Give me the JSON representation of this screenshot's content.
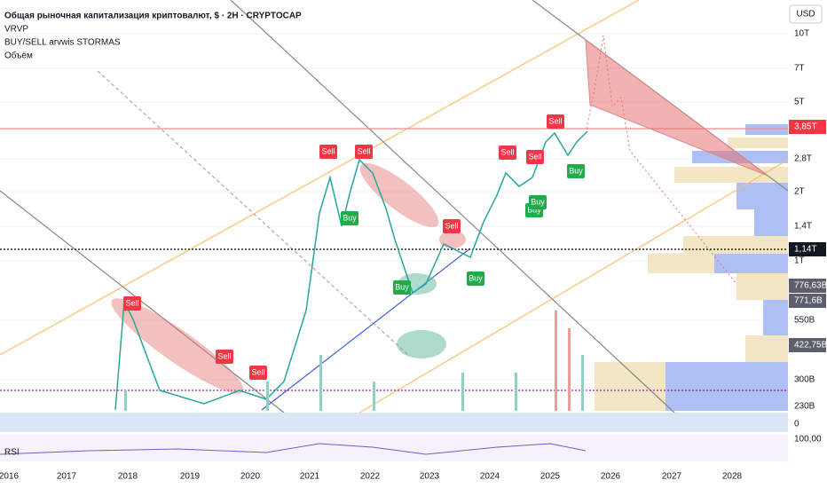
{
  "header": {
    "title": "Общая рыночная капитализация криптовалют, $ · 2H · CRYPTOCAP",
    "indicators": [
      "VRVP",
      "BUY/SELL arvwis STORMAS",
      "Объём"
    ]
  },
  "price_axis": {
    "currency": "USD",
    "labels": [
      "10T",
      "7T",
      "5T",
      "3,85T",
      "2,8T",
      "2T",
      "1,4T",
      "1,14T",
      "1T",
      "776,63B",
      "771,6B",
      "550B",
      "422,75B",
      "300B",
      "230B",
      "0",
      "100,00"
    ]
  },
  "time_axis": {
    "labels": [
      "2016",
      "2017",
      "2018",
      "2019",
      "2020",
      "2021",
      "2022",
      "2023",
      "2024",
      "2025",
      "2026",
      "2027",
      "2028"
    ]
  },
  "signals": [
    "Sell",
    "Sell",
    "Sell",
    "Sell",
    "Sell",
    "Sell",
    "Sell",
    "Sell",
    "Sell",
    "Buy",
    "Buy",
    "Buy",
    "Buy",
    "Buy",
    "Buy"
  ],
  "rsi_pane": {
    "label": "RSI"
  }
}
